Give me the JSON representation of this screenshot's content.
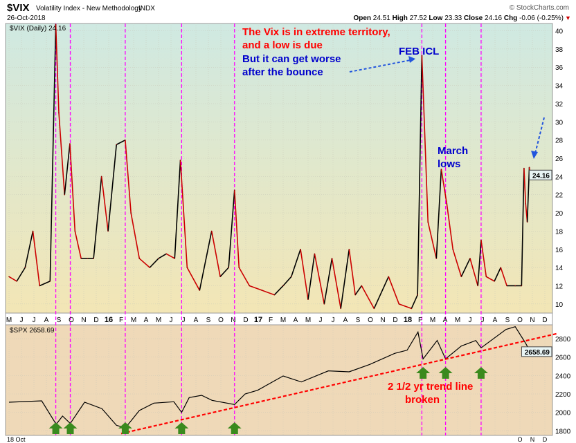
{
  "header": {
    "symbol": "$VIX",
    "name": "Volatility Index - New Methodology",
    "exchange": "INDX",
    "date": "26-Oct-2018",
    "copyright": "© StockCharts.com",
    "open_label": "Open",
    "open": "24.51",
    "high_label": "High",
    "high": "27.52",
    "low_label": "Low",
    "low": "23.33",
    "close_label": "Close",
    "close": "24.16",
    "chg_label": "Chg",
    "chg": "-0.06 (-0.25%)",
    "down_arrow": "▼"
  },
  "colors": {
    "falling": "#cc0000",
    "rising": "#000000",
    "vline": "#ff00ff",
    "trend": "#ff0000",
    "arrow": "#3a8a1e",
    "annot_red": "#ff0000",
    "annot_blue": "#0000cc"
  },
  "chart_data": [
    {
      "type": "line",
      "title": "$VIX (Daily) 24.16",
      "legend": "$VIX (Daily) 24.16",
      "ylim": [
        9,
        40.8
      ],
      "yticks": [
        10,
        12,
        14,
        16,
        18,
        20,
        22,
        24,
        26,
        28,
        30,
        32,
        34,
        36,
        38,
        40
      ],
      "last_label": "24.16",
      "grid": true,
      "x": [
        "2015-05-01",
        "2015-05-20",
        "2015-06-10",
        "2015-06-29",
        "2015-07-15",
        "2015-08-10",
        "2015-08-24",
        "2015-09-01",
        "2015-09-15",
        "2015-09-28",
        "2015-10-10",
        "2015-10-25",
        "2015-11-10",
        "2015-11-25",
        "2015-12-14",
        "2015-12-30",
        "2016-01-20",
        "2016-02-11",
        "2016-02-25",
        "2016-03-15",
        "2016-04-10",
        "2016-05-01",
        "2016-05-20",
        "2016-06-10",
        "2016-06-24",
        "2016-07-10",
        "2016-08-10",
        "2016-09-09",
        "2016-09-30",
        "2016-10-20",
        "2016-11-04",
        "2016-11-15",
        "2016-12-10",
        "2017-01-10",
        "2017-02-10",
        "2017-03-01",
        "2017-03-21",
        "2017-04-13",
        "2017-05-01",
        "2017-05-17",
        "2017-06-10",
        "2017-06-29",
        "2017-07-20",
        "2017-08-10",
        "2017-08-25",
        "2017-09-10",
        "2017-10-10",
        "2017-11-15",
        "2017-12-10",
        "2018-01-10",
        "2018-01-25",
        "2018-02-05",
        "2018-02-20",
        "2018-03-10",
        "2018-03-22",
        "2018-04-05",
        "2018-04-20",
        "2018-05-10",
        "2018-06-01",
        "2018-06-20",
        "2018-06-28",
        "2018-07-10",
        "2018-07-30",
        "2018-08-15",
        "2018-08-30",
        "2018-09-20",
        "2018-10-05",
        "2018-10-11",
        "2018-10-15",
        "2018-10-19",
        "2018-10-24",
        "2018-10-26"
      ],
      "values": [
        13,
        12.5,
        14,
        18,
        12,
        12.5,
        40.7,
        31,
        22,
        27.6,
        18,
        15,
        15,
        15,
        24,
        18,
        27.5,
        28,
        20,
        15,
        14,
        15,
        15.5,
        15,
        25.8,
        14,
        11.5,
        18,
        13,
        14,
        22.5,
        14,
        12,
        11.5,
        11,
        12,
        13,
        16,
        10.5,
        15.5,
        10,
        15,
        9.5,
        16,
        11,
        12,
        9.5,
        13,
        10,
        9.5,
        11,
        37.3,
        19,
        15,
        24.8,
        21,
        16,
        13,
        15,
        12,
        17,
        13,
        12.5,
        14,
        12,
        12,
        12,
        24.9,
        21,
        19,
        25,
        24.16
      ]
    },
    {
      "type": "line",
      "title": "$SPX 2658.69",
      "legend": "$SPX 2658.69",
      "ylim": [
        1750,
        2950
      ],
      "yticks": [
        1800,
        2000,
        2200,
        2400,
        2600,
        2800
      ],
      "last_label": "2658.69",
      "x": [
        "2015-05-01",
        "2015-07-20",
        "2015-08-25",
        "2015-09-10",
        "2015-09-29",
        "2015-11-03",
        "2015-12-15",
        "2016-01-20",
        "2016-02-11",
        "2016-03-15",
        "2016-04-20",
        "2016-06-08",
        "2016-06-27",
        "2016-07-15",
        "2016-08-15",
        "2016-09-10",
        "2016-11-04",
        "2016-11-30",
        "2016-12-30",
        "2017-03-01",
        "2017-04-15",
        "2017-06-20",
        "2017-08-10",
        "2017-09-30",
        "2017-11-30",
        "2017-12-30",
        "2018-01-26",
        "2018-02-08",
        "2018-03-12",
        "2018-04-02",
        "2018-05-10",
        "2018-06-15",
        "2018-06-28",
        "2018-08-28",
        "2018-09-20",
        "2018-10-10",
        "2018-10-15",
        "2018-10-26"
      ],
      "values": [
        2110,
        2125,
        1870,
        1960,
        1880,
        2110,
        2040,
        1860,
        1830,
        2020,
        2100,
        2115,
        2000,
        2160,
        2185,
        2130,
        2085,
        2200,
        2240,
        2395,
        2330,
        2450,
        2440,
        2520,
        2640,
        2675,
        2872,
        2580,
        2780,
        2580,
        2720,
        2780,
        2700,
        2900,
        2930,
        2785,
        2750,
        2658.69
      ],
      "trendline": {
        "label": "2 1/2 yr trend line broken",
        "from": [
          "2016-02-01",
          1770
        ],
        "to": [
          "2018-12-31",
          2855
        ]
      },
      "arrows": [
        "2015-08-24",
        "2015-09-29",
        "2016-02-11",
        "2016-06-27",
        "2016-11-04",
        "2018-02-08",
        "2018-04-02",
        "2018-06-28"
      ]
    }
  ],
  "vlines": [
    "2015-08-24",
    "2015-09-29",
    "2016-02-11",
    "2016-06-27",
    "2016-11-04",
    "2018-02-05",
    "2018-04-02",
    "2018-06-28"
  ],
  "x_ticks": [
    "M",
    "J",
    "J",
    "A",
    "S",
    "O",
    "N",
    "D",
    "16",
    "F",
    "M",
    "A",
    "M",
    "J",
    "J",
    "A",
    "S",
    "O",
    "N",
    "D",
    "17",
    "F",
    "M",
    "A",
    "M",
    "J",
    "J",
    "A",
    "S",
    "O",
    "N",
    "D",
    "18",
    "F",
    "M",
    "A",
    "M",
    "J",
    "J",
    "A",
    "S",
    "O",
    "N",
    "D"
  ],
  "bottom_left": "18 Oct",
  "annotations": {
    "vix_line1": "The Vix is in extreme territory,",
    "vix_line2": "and a low is due",
    "vix_line3": "But it can get worse",
    "vix_line4": "after the bounce",
    "feb": "FEB ICL",
    "march1": "March",
    "march2": "lows",
    "trend1": "2 1/2 yr trend line",
    "trend2": "broken"
  }
}
